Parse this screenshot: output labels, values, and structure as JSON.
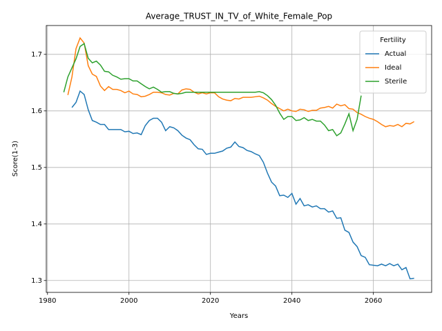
{
  "chart_data": {
    "type": "line",
    "title": "Average_TRUST_IN_TV_of_White_Female_Pop",
    "x_label": "Years",
    "y_label": "Score(1-3)",
    "xlim": [
      1979.7,
      2074.3
    ],
    "ylim": [
      1.279,
      1.751
    ],
    "xticks": [
      1980,
      2000,
      2020,
      2040,
      2060
    ],
    "yticks": [
      1.3,
      1.4,
      1.5,
      1.6,
      1.7
    ],
    "grid": true,
    "legend_title": "Fertility",
    "legend_position": "upper right",
    "x": [
      1984,
      1985,
      1986,
      1987,
      1988,
      1989,
      1990,
      1991,
      1992,
      1993,
      1994,
      1995,
      1996,
      1997,
      1998,
      1999,
      2000,
      2001,
      2002,
      2003,
      2004,
      2005,
      2006,
      2007,
      2008,
      2009,
      2010,
      2011,
      2012,
      2013,
      2014,
      2015,
      2016,
      2017,
      2018,
      2019,
      2020,
      2021,
      2022,
      2023,
      2024,
      2025,
      2026,
      2027,
      2028,
      2029,
      2030,
      2031,
      2032,
      2033,
      2034,
      2035,
      2036,
      2037,
      2038,
      2039,
      2040,
      2041,
      2042,
      2043,
      2044,
      2045,
      2046,
      2047,
      2048,
      2049,
      2050,
      2051,
      2052,
      2053,
      2054,
      2055,
      2056,
      2057,
      2058,
      2059,
      2060,
      2061,
      2062,
      2063,
      2064,
      2065,
      2066,
      2067,
      2068,
      2069,
      2070
    ],
    "series": [
      {
        "name": "Actual",
        "color": "#1f77b4",
        "values": [
          null,
          null,
          1.606,
          1.615,
          1.635,
          1.629,
          1.602,
          1.583,
          1.58,
          1.576,
          1.576,
          1.567,
          1.567,
          1.567,
          1.567,
          1.563,
          1.564,
          1.56,
          1.561,
          1.558,
          1.574,
          1.583,
          1.587,
          1.587,
          1.58,
          1.565,
          1.572,
          1.57,
          1.565,
          1.557,
          1.552,
          1.549,
          1.54,
          1.533,
          1.532,
          1.523,
          1.525,
          1.525,
          1.527,
          1.529,
          1.534,
          1.536,
          1.545,
          1.537,
          1.535,
          1.53,
          1.528,
          1.524,
          1.521,
          1.509,
          1.49,
          1.474,
          1.467,
          1.45,
          1.451,
          1.447,
          1.454,
          1.435,
          1.445,
          1.432,
          1.434,
          1.43,
          1.432,
          1.427,
          1.427,
          1.421,
          1.423,
          1.41,
          1.411,
          1.389,
          1.385,
          1.368,
          1.36,
          1.344,
          1.341,
          1.328,
          1.327,
          1.326,
          1.329,
          1.326,
          1.33,
          1.326,
          1.329,
          1.319,
          1.323,
          1.303,
          1.304
        ]
      },
      {
        "name": "Ideal",
        "color": "#ff7f0e",
        "values": [
          null,
          1.628,
          1.66,
          1.71,
          1.729,
          1.72,
          1.68,
          1.665,
          1.661,
          1.644,
          1.636,
          1.643,
          1.638,
          1.638,
          1.636,
          1.632,
          1.635,
          1.63,
          1.629,
          1.625,
          1.626,
          1.629,
          1.633,
          1.633,
          1.632,
          1.629,
          1.628,
          1.631,
          1.63,
          1.637,
          1.639,
          1.638,
          1.633,
          1.63,
          1.632,
          1.63,
          1.632,
          1.632,
          1.625,
          1.621,
          1.619,
          1.618,
          1.622,
          1.621,
          1.624,
          1.624,
          1.624,
          1.625,
          1.626,
          1.623,
          1.619,
          1.613,
          1.608,
          1.604,
          1.6,
          1.603,
          1.6,
          1.599,
          1.603,
          1.602,
          1.599,
          1.601,
          1.601,
          1.605,
          1.606,
          1.608,
          1.605,
          1.612,
          1.609,
          1.611,
          1.604,
          1.603,
          1.597,
          1.594,
          1.59,
          1.587,
          1.585,
          1.581,
          1.576,
          1.572,
          1.574,
          1.573,
          1.576,
          1.572,
          1.578,
          1.577,
          1.581
        ]
      },
      {
        "name": "Sterile",
        "color": "#2ca02c",
        "values": [
          1.633,
          1.66,
          1.676,
          1.692,
          1.714,
          1.719,
          1.693,
          1.685,
          1.688,
          1.681,
          1.67,
          1.669,
          1.663,
          1.66,
          1.656,
          1.657,
          1.657,
          1.653,
          1.653,
          1.648,
          1.643,
          1.639,
          1.642,
          1.638,
          1.633,
          1.634,
          1.634,
          1.631,
          1.63,
          1.631,
          1.633,
          1.633,
          1.633,
          1.633,
          1.633,
          1.633,
          1.633,
          1.633,
          1.633,
          1.633,
          1.633,
          1.633,
          1.633,
          1.633,
          1.633,
          1.633,
          1.633,
          1.633,
          1.634,
          1.632,
          1.627,
          1.62,
          1.61,
          1.596,
          1.585,
          1.59,
          1.59,
          1.583,
          1.584,
          1.588,
          1.583,
          1.585,
          1.582,
          1.582,
          1.575,
          1.565,
          1.567,
          1.556,
          1.561,
          1.577,
          1.595,
          1.565,
          1.585,
          1.627,
          null,
          null,
          null,
          null,
          null,
          null,
          null,
          null,
          null,
          null,
          null,
          null,
          null
        ]
      }
    ]
  }
}
